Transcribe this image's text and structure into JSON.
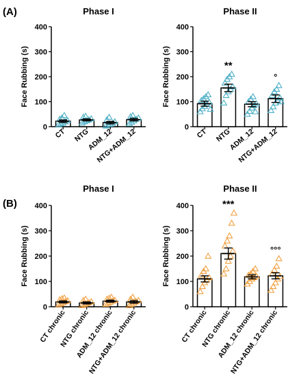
{
  "panel_labels": [
    "(A)",
    "(B)"
  ],
  "colors": {
    "teal": "#4aaec4",
    "orange": "#f0a040",
    "axis": "#000000"
  },
  "chart_data": [
    {
      "type": "bar",
      "panel": "(A)",
      "title": "Phase I",
      "ylabel": "Face Rubbing (s)",
      "ylim": [
        0,
        400
      ],
      "yticks": [
        "0",
        "100",
        "200",
        "300",
        "400"
      ],
      "categories": [
        "CT",
        "NTG",
        "ADM_12",
        "NTG+ADM_12"
      ],
      "values": [
        22,
        27,
        16,
        28
      ],
      "sem": [
        5,
        4,
        5,
        5
      ],
      "points": [
        [
          8,
          12,
          15,
          20,
          25,
          30,
          35,
          45
        ],
        [
          15,
          20,
          24,
          28,
          32,
          38,
          42
        ],
        [
          3,
          6,
          10,
          14,
          20,
          28,
          38
        ],
        [
          12,
          18,
          24,
          30,
          35,
          40,
          45
        ]
      ],
      "marker": "triangle-teal",
      "significance": [
        "",
        "",
        "",
        ""
      ]
    },
    {
      "type": "bar",
      "panel": "(A)",
      "title": "Phase II",
      "ylabel": "Face Rubbing (s)",
      "ylim": [
        0,
        400
      ],
      "yticks": [
        "0",
        "100",
        "200",
        "300",
        "400"
      ],
      "categories": [
        "CT",
        "NTG",
        "ADM_12",
        "NTG+ADM_12"
      ],
      "values": [
        92,
        155,
        90,
        112
      ],
      "sem": [
        10,
        15,
        10,
        15
      ],
      "points": [
        [
          60,
          72,
          82,
          90,
          98,
          105,
          112,
          120,
          128,
          70
        ],
        [
          95,
          125,
          140,
          150,
          160,
          175,
          190,
          200,
          210
        ],
        [
          50,
          62,
          75,
          85,
          92,
          100,
          110,
          120,
          60
        ],
        [
          65,
          80,
          95,
          105,
          115,
          125,
          140,
          150,
          165,
          100
        ]
      ],
      "marker": "triangle-teal",
      "significance": [
        "",
        "**",
        "",
        "°"
      ]
    },
    {
      "type": "bar",
      "panel": "(B)",
      "title": "Phase I",
      "ylabel": "Face Rubbing (s)",
      "ylim": [
        0,
        400
      ],
      "yticks": [
        "0",
        "100",
        "200",
        "300",
        "400"
      ],
      "categories": [
        "CT chronic",
        "NTG chronic",
        "ADM_12 chronic",
        "NTG+ADM_12 chronic"
      ],
      "values": [
        19,
        15,
        22,
        19
      ],
      "sem": [
        4,
        4,
        4,
        5
      ],
      "points": [
        [
          8,
          12,
          16,
          20,
          24,
          28,
          32,
          35
        ],
        [
          5,
          8,
          12,
          16,
          20,
          25,
          30
        ],
        [
          10,
          14,
          18,
          22,
          26,
          30,
          34,
          38
        ],
        [
          5,
          10,
          15,
          20,
          25,
          30,
          38
        ]
      ],
      "marker": "triangle-orange",
      "significance": [
        "",
        "",
        "",
        ""
      ]
    },
    {
      "type": "bar",
      "panel": "(B)",
      "title": "Phase II",
      "ylabel": "Face Rubbing (s)",
      "ylim": [
        0,
        400
      ],
      "yticks": [
        "0",
        "100",
        "200",
        "300",
        "400"
      ],
      "categories": [
        "CT chronic",
        "NTG chronic",
        "ADM_12 chronic",
        "NTG+ADM_12 chronic"
      ],
      "values": [
        110,
        210,
        118,
        122
      ],
      "sem": [
        12,
        22,
        8,
        12
      ],
      "points": [
        [
          60,
          80,
          95,
          105,
          115,
          125,
          140,
          150,
          200
        ],
        [
          130,
          150,
          180,
          200,
          220,
          240,
          260,
          280,
          330,
          370
        ],
        [
          90,
          100,
          110,
          115,
          120,
          125,
          130,
          140,
          150
        ],
        [
          65,
          80,
          95,
          110,
          120,
          130,
          145,
          160,
          190
        ]
      ],
      "marker": "triangle-orange",
      "significance": [
        "",
        "***",
        "",
        "°°°"
      ]
    }
  ]
}
